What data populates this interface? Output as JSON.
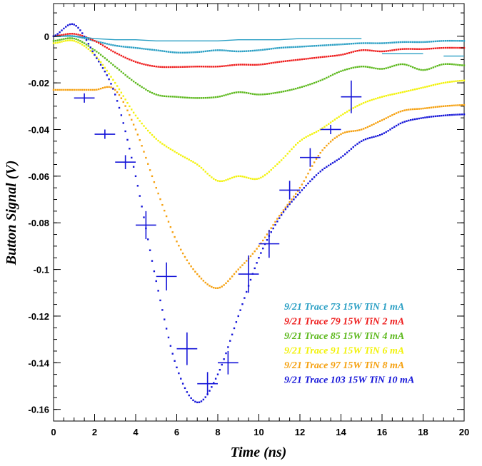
{
  "chart_data": {
    "type": "scatter",
    "xlabel": "Time (ns)",
    "ylabel": "Button Signal (V)",
    "xlim": [
      0,
      20
    ],
    "ylim": [
      -0.165,
      0.014
    ],
    "x_ticks": [
      "0",
      "2",
      "4",
      "6",
      "8",
      "10",
      "12",
      "14",
      "16",
      "18",
      "20"
    ],
    "y_ticks": [
      "0",
      "-0.02",
      "-0.04",
      "-0.06",
      "-0.08",
      "-0.1",
      "-0.12",
      "-0.14",
      "-0.16"
    ],
    "y_tick_values": [
      0,
      -0.02,
      -0.04,
      -0.06,
      -0.08,
      -0.1,
      -0.12,
      -0.14,
      -0.16
    ],
    "grid": false,
    "legend_position": "bottom-right",
    "series": [
      {
        "name": "9/21 Trace 73 15W TiN 1 mA",
        "color": "#2a9fc4",
        "x": [
          0,
          1,
          2,
          3,
          4,
          5,
          6,
          7,
          8,
          9,
          10,
          11,
          12,
          13,
          14,
          15,
          16,
          17,
          18,
          19,
          20
        ],
        "y": [
          0,
          0,
          -0.002,
          -0.004,
          -0.005,
          -0.006,
          -0.007,
          -0.0068,
          -0.006,
          -0.0065,
          -0.006,
          -0.005,
          -0.0045,
          -0.004,
          -0.0035,
          -0.003,
          -0.003,
          -0.0025,
          -0.0025,
          -0.002,
          -0.002
        ]
      },
      {
        "name": "9/21 Trace 79 15W TiN 2 mA",
        "color": "#ee1c1c",
        "x": [
          0,
          1,
          2,
          3,
          4,
          5,
          6,
          7,
          8,
          9,
          10,
          11,
          12,
          13,
          14,
          15,
          16,
          17,
          18,
          19,
          20
        ],
        "y": [
          0,
          0.001,
          -0.002,
          -0.007,
          -0.011,
          -0.013,
          -0.0132,
          -0.013,
          -0.013,
          -0.0122,
          -0.0122,
          -0.011,
          -0.01,
          -0.009,
          -0.008,
          -0.006,
          -0.0065,
          -0.0055,
          -0.0055,
          -0.005,
          -0.005
        ]
      },
      {
        "name": "9/21 Trace 85 15W TiN 4 mA",
        "color": "#5cb81c",
        "x": [
          0,
          1,
          2,
          3,
          4,
          5,
          6,
          7,
          8,
          9,
          10,
          11,
          12,
          13,
          14,
          15,
          16,
          17,
          18,
          19,
          20
        ],
        "y": [
          -0.002,
          -0.001,
          -0.006,
          -0.013,
          -0.02,
          -0.025,
          -0.026,
          -0.0265,
          -0.026,
          -0.024,
          -0.025,
          -0.024,
          -0.022,
          -0.019,
          -0.015,
          -0.013,
          -0.014,
          -0.012,
          -0.0145,
          -0.012,
          -0.0125
        ]
      },
      {
        "name": "9/21 Trace 91 15W TiN 6 mA",
        "color": "#f2f20a",
        "x": [
          0,
          1,
          2,
          3,
          4,
          5,
          6,
          7,
          8,
          9,
          10,
          11,
          12,
          13,
          14,
          15,
          16,
          17,
          18,
          19,
          20
        ],
        "y": [
          -0.003,
          -0.002,
          -0.008,
          -0.02,
          -0.034,
          -0.044,
          -0.05,
          -0.055,
          -0.062,
          -0.06,
          -0.061,
          -0.054,
          -0.045,
          -0.04,
          -0.034,
          -0.029,
          -0.026,
          -0.024,
          -0.022,
          -0.02,
          -0.019
        ]
      },
      {
        "name": "9/21 Trace 97 15W TiN 8 mA",
        "color": "#f5a00e",
        "x": [
          0,
          1,
          2,
          3,
          4,
          5,
          6,
          7,
          8,
          9,
          10,
          11,
          12,
          13,
          14,
          15,
          16,
          17,
          18,
          19,
          20
        ],
        "y": [
          -0.023,
          -0.023,
          -0.023,
          -0.023,
          -0.04,
          -0.065,
          -0.088,
          -0.102,
          -0.108,
          -0.1,
          -0.09,
          -0.077,
          -0.065,
          -0.05,
          -0.042,
          -0.04,
          -0.036,
          -0.032,
          -0.031,
          -0.03,
          -0.0295
        ]
      },
      {
        "name": "9/21 Trace 103 15W TiN 10 mA",
        "color": "#1414d8",
        "x": [
          0,
          1,
          2,
          3,
          4,
          5,
          6,
          7,
          8,
          9,
          10,
          11,
          12,
          13,
          14,
          15,
          16,
          17,
          18,
          19,
          20
        ],
        "y": [
          0,
          0.005,
          -0.008,
          -0.025,
          -0.06,
          -0.105,
          -0.142,
          -0.157,
          -0.145,
          -0.12,
          -0.095,
          -0.078,
          -0.067,
          -0.058,
          -0.052,
          -0.045,
          -0.042,
          -0.037,
          -0.035,
          -0.034,
          -0.0335
        ]
      },
      {
        "name": "",
        "type": "errorbar",
        "color": "#1414d8",
        "x": [
          1.5,
          2.5,
          3.5,
          4.5,
          5.5,
          6.5,
          7.5,
          8.5,
          9.5,
          10.5,
          11.5,
          12.5,
          13.5,
          14.5
        ],
        "y": [
          -0.0265,
          -0.042,
          -0.054,
          -0.081,
          -0.103,
          -0.134,
          -0.149,
          -0.14,
          -0.102,
          -0.089,
          -0.066,
          -0.052,
          -0.04,
          -0.026
        ],
        "x_err": 0.5,
        "y_err": [
          0.002,
          0.002,
          0.003,
          0.006,
          0.006,
          0.007,
          0.005,
          0.005,
          0.008,
          0.006,
          0.004,
          0.004,
          0.002,
          0.007
        ]
      },
      {
        "name": "",
        "type": "line",
        "color": "#2a9fc4",
        "x": [
          0,
          1,
          2,
          3,
          4,
          5,
          6,
          7,
          8,
          9,
          10,
          11,
          12,
          13,
          14,
          15
        ],
        "y": [
          0,
          0,
          -0.001,
          -0.0015,
          -0.0015,
          -0.002,
          -0.002,
          -0.002,
          -0.002,
          -0.0015,
          -0.0015,
          -0.0015,
          -0.001,
          -0.001,
          -0.001,
          -0.001
        ]
      },
      {
        "name": "",
        "type": "segments",
        "color": "#2a9fc4",
        "x": [
          16,
          18,
          19,
          20
        ],
        "y": [
          -0.0075,
          -0.0075,
          -0.0085,
          -0.0085
        ]
      }
    ]
  }
}
